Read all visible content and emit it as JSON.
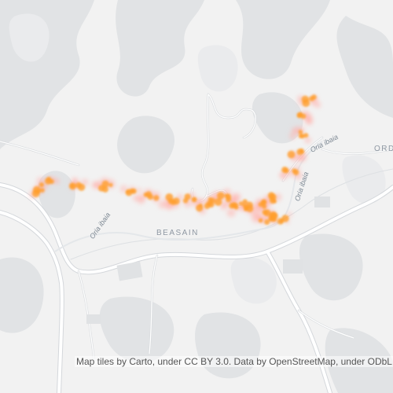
{
  "map": {
    "place_labels": {
      "town_main": "BEASAIN",
      "town_edge": "ORD"
    },
    "water_labels": {
      "river_west": "Oria ibaia",
      "river_east_top": "Oria ibaia",
      "river_east_side": "Oria ibaia"
    },
    "attribution": "Map tiles by Carto, under CC BY 3.0. Data by OpenStreetMap, under ODbL.",
    "colors": {
      "background": "#f2f2f2",
      "relief": "#e2e4e6",
      "road": "#ffffff",
      "road_casing": "#d4d7db",
      "heat_core": "#ff9f2a",
      "heat_halo": "#ffb3ad"
    },
    "heat_points": [
      {
        "lat": 43.0465,
        "lon": -2.2105,
        "w": 1
      },
      {
        "lat": 43.0472,
        "lon": -2.2098,
        "w": 1
      },
      {
        "lat": 43.047,
        "lon": -2.206,
        "w": 1
      },
      {
        "lat": 43.0468,
        "lon": -2.202,
        "w": 1
      },
      {
        "lat": 43.0462,
        "lon": -2.1985,
        "w": 1
      },
      {
        "lat": 43.0459,
        "lon": -2.196,
        "w": 1
      },
      {
        "lat": 43.0457,
        "lon": -2.1935,
        "w": 1
      },
      {
        "lat": 43.0458,
        "lon": -2.191,
        "w": 1
      },
      {
        "lat": 43.0452,
        "lon": -2.189,
        "w": 1
      },
      {
        "lat": 43.0456,
        "lon": -2.1875,
        "w": 1
      },
      {
        "lat": 43.046,
        "lon": -2.1862,
        "w": 1
      },
      {
        "lat": 43.0451,
        "lon": -2.185,
        "w": 1
      },
      {
        "lat": 43.0455,
        "lon": -2.1838,
        "w": 1
      },
      {
        "lat": 43.0449,
        "lon": -2.1828,
        "w": 1
      },
      {
        "lat": 43.0453,
        "lon": -2.1815,
        "w": 1
      },
      {
        "lat": 43.0446,
        "lon": -2.1805,
        "w": 1
      },
      {
        "lat": 43.0458,
        "lon": -2.1795,
        "w": 1
      },
      {
        "lat": 43.0441,
        "lon": -2.179,
        "w": 1
      },
      {
        "lat": 43.0538,
        "lon": -2.1752,
        "w": 1
      },
      {
        "lat": 43.0525,
        "lon": -2.1758,
        "w": 1
      },
      {
        "lat": 43.051,
        "lon": -2.1762,
        "w": 1
      },
      {
        "lat": 43.0495,
        "lon": -2.1768,
        "w": 1
      },
      {
        "lat": 43.048,
        "lon": -2.1775,
        "w": 1
      },
      {
        "lat": 43.044,
        "lon": -2.1808,
        "w": 1
      }
    ]
  }
}
